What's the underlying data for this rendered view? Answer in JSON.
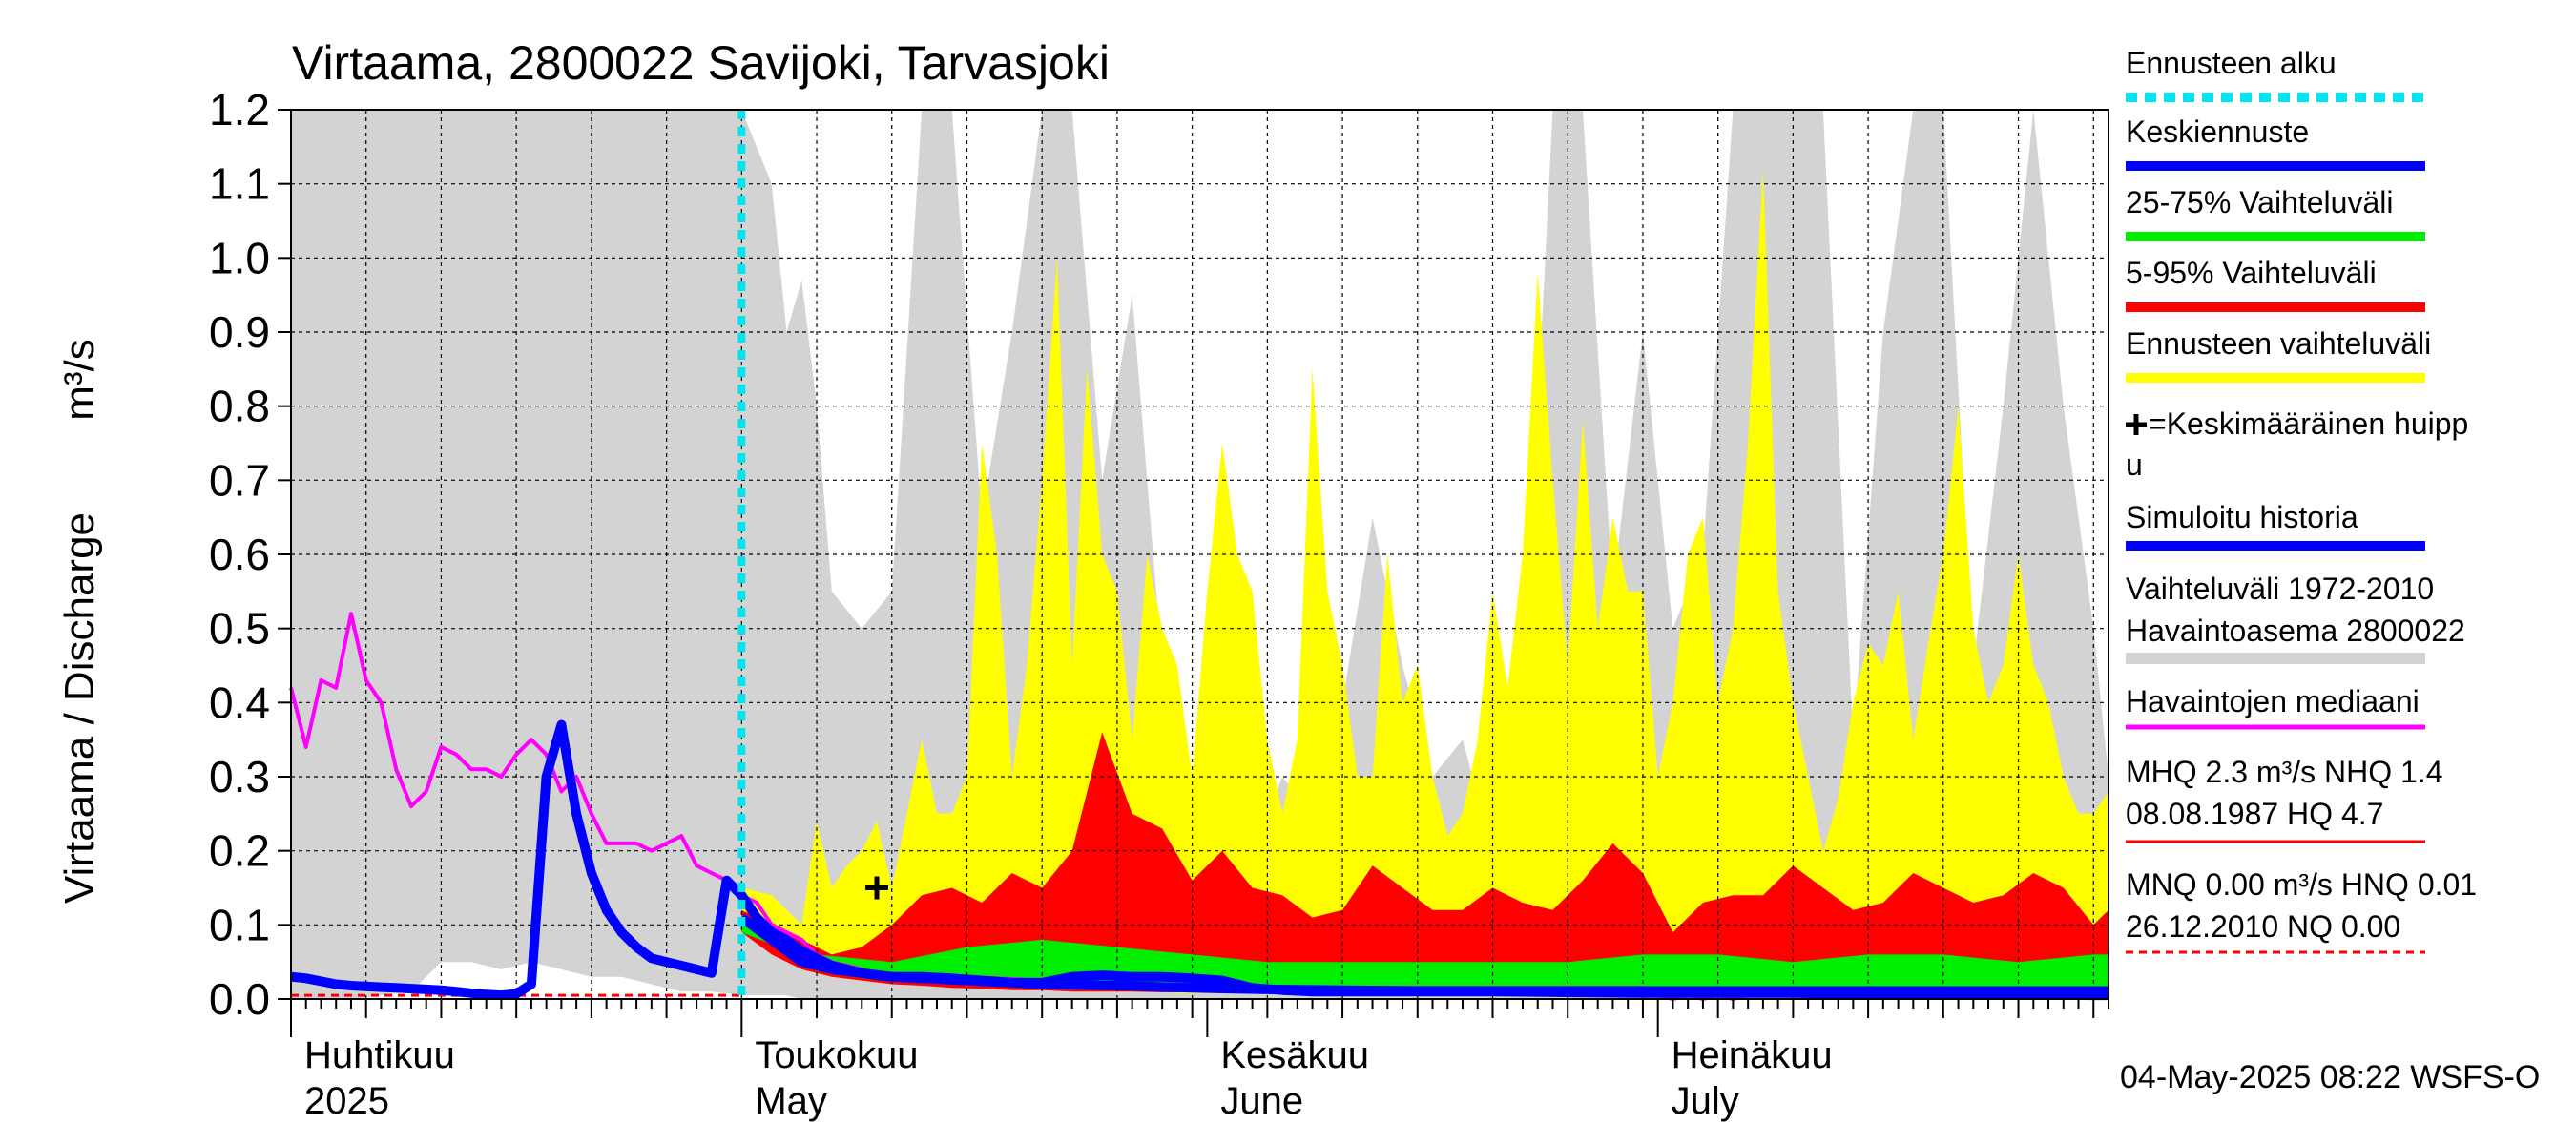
{
  "chart_data": {
    "type": "area",
    "title": "Virtaama, 2800022 Savijoki, Tarvasjoki",
    "ylabel": "Virtaama / Discharge",
    "yunit": "m³/s",
    "ylim": [
      0,
      1.2
    ],
    "yticks": [
      "0.0",
      "0.1",
      "0.2",
      "0.3",
      "0.4",
      "0.5",
      "0.6",
      "0.7",
      "0.8",
      "0.9",
      "1.0",
      "1.1",
      "1.2"
    ],
    "xlim_days": [
      0,
      121
    ],
    "forecast_start_day": 30,
    "month_labels": [
      {
        "day": 0,
        "fi": "Huhtikuu",
        "en": "2025"
      },
      {
        "day": 30,
        "fi": "Toukokuu",
        "en": "May"
      },
      {
        "day": 61,
        "fi": "Kesäkuu",
        "en": "June"
      },
      {
        "day": 91,
        "fi": "Heinäkuu",
        "en": "July"
      }
    ],
    "avg_peak": {
      "day": 39,
      "value": 0.15
    },
    "series": [
      {
        "name": "Vaihteluväli 1972-2010 Havaintoasema 2800022",
        "kind": "band",
        "color": "#d3d3d3",
        "x": [
          0,
          2,
          4,
          6,
          8,
          10,
          12,
          14,
          16,
          18,
          20,
          22,
          24,
          26,
          28,
          30,
          32,
          33,
          34,
          35,
          36,
          38,
          40,
          42,
          44,
          46,
          48,
          50,
          52,
          54,
          56,
          58,
          60,
          62,
          64,
          66,
          68,
          70,
          72,
          74,
          76,
          78,
          80,
          82,
          84,
          86,
          88,
          90,
          92,
          94,
          96,
          98,
          100,
          102,
          104,
          106,
          108,
          110,
          112,
          114,
          116,
          118,
          120,
          121
        ],
        "low": [
          0,
          0,
          0,
          0.005,
          0.01,
          0.05,
          0.05,
          0.04,
          0.05,
          0.04,
          0.03,
          0.03,
          0.02,
          0.01,
          0.01,
          0.005,
          0.005,
          0.005,
          0,
          0,
          0,
          0,
          0,
          0,
          0,
          0,
          0,
          0,
          0,
          0,
          0,
          0,
          0,
          0,
          0,
          0,
          0,
          0,
          0,
          0,
          0,
          0,
          0,
          0,
          0,
          0,
          0,
          0,
          0,
          0,
          0,
          0,
          0,
          0,
          0,
          0,
          0,
          0,
          0,
          0,
          0,
          0,
          0,
          0
        ],
        "high": [
          1.2,
          1.2,
          1.2,
          1.2,
          1.2,
          1.2,
          1.2,
          1.2,
          1.2,
          1.2,
          1.2,
          1.2,
          1.2,
          1.2,
          1.2,
          1.2,
          1.1,
          0.9,
          0.97,
          0.8,
          0.55,
          0.5,
          0.55,
          1.2,
          1.2,
          0.65,
          0.9,
          1.2,
          1.2,
          0.7,
          0.95,
          0.45,
          0.3,
          0.35,
          0.2,
          0.3,
          0.25,
          0.4,
          0.65,
          0.45,
          0.3,
          0.35,
          0.2,
          0.4,
          1.2,
          1.2,
          0.55,
          0.9,
          0.5,
          0.6,
          1.2,
          1.2,
          1.2,
          1.2,
          0.35,
          0.9,
          1.2,
          1.2,
          0.45,
          0.8,
          1.2,
          0.8,
          0.5,
          0.3
        ]
      },
      {
        "name": "Ennusteen vaihteluväli",
        "kind": "band",
        "color": "#ffff00",
        "x": [
          30,
          32,
          33,
          34,
          35,
          36,
          37,
          38,
          39,
          40,
          41,
          42,
          43,
          44,
          45,
          46,
          47,
          48,
          49,
          50,
          51,
          52,
          53,
          54,
          55,
          56,
          57,
          58,
          59,
          60,
          61,
          62,
          63,
          64,
          65,
          66,
          67,
          68,
          69,
          70,
          71,
          72,
          73,
          74,
          75,
          76,
          77,
          78,
          79,
          80,
          81,
          82,
          83,
          84,
          85,
          86,
          87,
          88,
          89,
          90,
          91,
          92,
          93,
          94,
          95,
          96,
          97,
          98,
          99,
          100,
          101,
          102,
          103,
          104,
          105,
          106,
          107,
          108,
          109,
          110,
          111,
          112,
          113,
          114,
          115,
          116,
          117,
          118,
          119,
          120,
          121
        ],
        "low": [
          0.1,
          0.08,
          0.07,
          0.06,
          0.05,
          0.04,
          0.04,
          0.03,
          0.03,
          0.03,
          0.025,
          0.025,
          0.02,
          0.02,
          0.02,
          0.02,
          0.015,
          0.015,
          0.015,
          0.012,
          0.012,
          0.01,
          0.01,
          0.01,
          0.01,
          0.01,
          0.01,
          0.01,
          0.008,
          0.008,
          0.008,
          0.008,
          0.008,
          0.008,
          0.008,
          0.008,
          0.008,
          0.008,
          0.008,
          0.008,
          0.008,
          0.008,
          0.008,
          0.008,
          0.008,
          0.008,
          0.008,
          0.008,
          0.008,
          0.008,
          0.008,
          0.008,
          0.008,
          0.008,
          0.008,
          0.008,
          0.008,
          0.008,
          0.008,
          0.008,
          0.008,
          0.008,
          0.008,
          0.008,
          0.008,
          0.008,
          0.008,
          0.008,
          0.008,
          0.008,
          0.008,
          0.008,
          0.008,
          0.008,
          0.008,
          0.008,
          0.008,
          0.008,
          0.008,
          0.008,
          0.008,
          0.008,
          0.008,
          0.008,
          0.008,
          0.008,
          0.008,
          0.008,
          0.008,
          0.008,
          0.008
        ],
        "high": [
          0.15,
          0.14,
          0.12,
          0.1,
          0.24,
          0.15,
          0.18,
          0.2,
          0.24,
          0.15,
          0.25,
          0.35,
          0.25,
          0.25,
          0.3,
          0.75,
          0.6,
          0.3,
          0.45,
          0.7,
          1.0,
          0.45,
          0.85,
          0.6,
          0.55,
          0.35,
          0.6,
          0.5,
          0.45,
          0.3,
          0.55,
          0.75,
          0.6,
          0.55,
          0.35,
          0.25,
          0.35,
          0.85,
          0.55,
          0.45,
          0.3,
          0.3,
          0.6,
          0.4,
          0.45,
          0.3,
          0.22,
          0.25,
          0.35,
          0.55,
          0.42,
          0.6,
          0.98,
          0.7,
          0.45,
          0.78,
          0.5,
          0.65,
          0.55,
          0.55,
          0.3,
          0.4,
          0.6,
          0.65,
          0.4,
          0.5,
          0.75,
          1.12,
          0.55,
          0.4,
          0.3,
          0.2,
          0.27,
          0.4,
          0.48,
          0.45,
          0.55,
          0.35,
          0.48,
          0.6,
          0.8,
          0.5,
          0.4,
          0.45,
          0.6,
          0.45,
          0.4,
          0.3,
          0.25,
          0.25,
          0.28
        ]
      },
      {
        "name": "5-95% Vaihteluväli",
        "kind": "band",
        "color": "#ff0000",
        "x": [
          30,
          32,
          34,
          36,
          38,
          40,
          42,
          44,
          46,
          48,
          50,
          52,
          54,
          56,
          58,
          60,
          62,
          64,
          66,
          68,
          70,
          72,
          74,
          76,
          78,
          80,
          82,
          84,
          86,
          88,
          90,
          92,
          94,
          96,
          98,
          100,
          102,
          104,
          106,
          108,
          110,
          112,
          114,
          116,
          118,
          120,
          121
        ],
        "low": [
          0.09,
          0.06,
          0.04,
          0.03,
          0.025,
          0.02,
          0.018,
          0.015,
          0.014,
          0.012,
          0.012,
          0.01,
          0.01,
          0.01,
          0.009,
          0.009,
          0.009,
          0.009,
          0.009,
          0.009,
          0.009,
          0.009,
          0.009,
          0.009,
          0.009,
          0.009,
          0.009,
          0.009,
          0.009,
          0.009,
          0.009,
          0.009,
          0.009,
          0.009,
          0.009,
          0.009,
          0.009,
          0.009,
          0.009,
          0.009,
          0.009,
          0.009,
          0.009,
          0.009,
          0.009,
          0.009,
          0.009
        ],
        "high": [
          0.12,
          0.1,
          0.08,
          0.06,
          0.07,
          0.1,
          0.14,
          0.15,
          0.13,
          0.17,
          0.15,
          0.2,
          0.36,
          0.25,
          0.23,
          0.16,
          0.2,
          0.15,
          0.14,
          0.11,
          0.12,
          0.18,
          0.15,
          0.12,
          0.12,
          0.15,
          0.13,
          0.12,
          0.16,
          0.21,
          0.17,
          0.09,
          0.13,
          0.14,
          0.14,
          0.18,
          0.15,
          0.12,
          0.13,
          0.17,
          0.15,
          0.13,
          0.14,
          0.17,
          0.15,
          0.1,
          0.12
        ]
      },
      {
        "name": "25-75% Vaihteluväli",
        "kind": "band",
        "color": "#00ee00",
        "x": [
          30,
          35,
          40,
          45,
          50,
          55,
          60,
          65,
          70,
          75,
          80,
          85,
          90,
          95,
          100,
          105,
          110,
          115,
          120,
          121
        ],
        "low": [
          0.09,
          0.05,
          0.03,
          0.02,
          0.018,
          0.015,
          0.013,
          0.012,
          0.012,
          0.011,
          0.011,
          0.011,
          0.011,
          0.011,
          0.011,
          0.011,
          0.011,
          0.011,
          0.011,
          0.011
        ],
        "high": [
          0.1,
          0.06,
          0.05,
          0.07,
          0.08,
          0.07,
          0.06,
          0.05,
          0.05,
          0.05,
          0.05,
          0.05,
          0.06,
          0.06,
          0.05,
          0.06,
          0.06,
          0.05,
          0.06,
          0.06
        ]
      },
      {
        "name": "Havaintojen mediaani",
        "kind": "line",
        "color": "#ff00ff",
        "x": [
          0,
          1,
          2,
          3,
          4,
          5,
          6,
          7,
          8,
          9,
          10,
          11,
          12,
          13,
          14,
          15,
          16,
          17,
          18,
          19,
          20,
          21,
          22,
          23,
          24,
          25,
          26,
          27,
          28,
          29,
          30,
          31,
          32,
          33,
          34,
          35,
          36,
          37,
          38,
          39,
          40,
          45,
          50,
          55,
          60,
          65,
          70,
          75,
          80,
          85,
          90,
          91,
          92,
          93,
          94,
          95,
          96,
          97,
          98,
          100,
          105,
          110,
          115,
          120,
          121
        ],
        "values": [
          0.42,
          0.34,
          0.43,
          0.42,
          0.52,
          0.43,
          0.4,
          0.31,
          0.26,
          0.28,
          0.34,
          0.33,
          0.31,
          0.31,
          0.3,
          0.33,
          0.35,
          0.33,
          0.28,
          0.3,
          0.25,
          0.21,
          0.21,
          0.21,
          0.2,
          0.21,
          0.22,
          0.18,
          0.17,
          0.16,
          0.14,
          0.13,
          0.1,
          0.09,
          0.08,
          0.06,
          0.05,
          0.045,
          0.04,
          0.035,
          0.03,
          0.03,
          0.025,
          0.02,
          0.015,
          0.015,
          0.015,
          0.015,
          0.015,
          0.015,
          0.015,
          0.005,
          0.0,
          0.005,
          0.0,
          0.005,
          0.0,
          0.005,
          0.005,
          0.005,
          0.005,
          0.005,
          0.005,
          0.005,
          0.005
        ]
      },
      {
        "name": "Simuloitu historia",
        "kind": "line",
        "color": "#0000ff",
        "x": [
          0,
          1,
          2,
          3,
          4,
          5,
          6,
          7,
          8,
          9,
          10,
          11,
          12,
          13,
          14,
          15,
          16,
          17,
          18,
          19,
          20,
          21,
          22,
          23,
          24,
          25,
          26,
          27,
          28,
          29,
          30,
          31,
          32,
          33,
          34,
          35,
          36,
          37,
          38,
          39,
          40,
          42,
          44,
          46,
          48,
          50,
          52,
          54,
          56,
          58,
          60,
          62,
          64,
          66,
          68,
          70,
          75,
          80,
          85,
          90,
          95,
          100,
          105,
          110,
          115,
          120,
          121
        ],
        "values": [
          0.03,
          0.028,
          0.024,
          0.02,
          0.018,
          0.017,
          0.016,
          0.015,
          0.014,
          0.013,
          0.012,
          0.01,
          0.008,
          0.006,
          0.005,
          0.007,
          0.02,
          0.3,
          0.37,
          0.25,
          0.17,
          0.12,
          0.09,
          0.07,
          0.055,
          0.05,
          0.045,
          0.04,
          0.035,
          0.16,
          0.14,
          0.11,
          0.09,
          0.08,
          0.065,
          0.055,
          0.045,
          0.04,
          0.035,
          0.032,
          0.03,
          0.03,
          0.028,
          0.025,
          0.022,
          0.022,
          0.03,
          0.032,
          0.03,
          0.03,
          0.028,
          0.025,
          0.015,
          0.012,
          0.01,
          0.01,
          0.01,
          0.01,
          0.009,
          0.008,
          0.008,
          0.008,
          0.007,
          0.007,
          0.006,
          0.005,
          0.005
        ]
      },
      {
        "name": "Keskiennuste",
        "kind": "line",
        "color": "#0000ff",
        "x": [
          30,
          32,
          34,
          36,
          38,
          40,
          45,
          50,
          55,
          60,
          65,
          70,
          75,
          80,
          85,
          90,
          95,
          100,
          105,
          110,
          115,
          120,
          121
        ],
        "values": [
          0.11,
          0.08,
          0.05,
          0.04,
          0.035,
          0.03,
          0.025,
          0.02,
          0.018,
          0.015,
          0.013,
          0.012,
          0.011,
          0.011,
          0.011,
          0.011,
          0.011,
          0.011,
          0.011,
          0.011,
          0.011,
          0.011,
          0.011
        ]
      }
    ],
    "reference_lines": [
      {
        "name": "MHQ",
        "value": 2.3,
        "color": "#ff0000",
        "style": "solid"
      },
      {
        "name": "MNQ",
        "value": 0.0,
        "color": "#ff0000",
        "style": "dashed"
      }
    ]
  },
  "legend": {
    "items": [
      {
        "label": "Ennusteen alku",
        "color": "#00e5ee",
        "style": "dotted"
      },
      {
        "label": "Keskiennuste",
        "color": "#0000ff",
        "style": "solid"
      },
      {
        "label": "25-75% Vaihteluväli",
        "color": "#00ee00",
        "style": "solid"
      },
      {
        "label": "5-95% Vaihteluväli",
        "color": "#ff0000",
        "style": "solid"
      },
      {
        "label": "Ennusteen vaihteluväli",
        "color": "#ffff00",
        "style": "solid"
      }
    ],
    "peak_label_line1": "=Keskimääräinen huipp",
    "peak_label_line2": "u",
    "sim_label": "Simuloitu historia",
    "sim_color": "#0000ff",
    "range_label_line1": "Vaihteluväli 1972-2010",
    "range_label_line2": " Havaintoasema 2800022",
    "range_color": "#d3d3d3",
    "median_label": "Havaintojen mediaani",
    "median_color": "#ff00ff",
    "mhq_line1": "MHQ  2.3 m³/s NHQ  1.4",
    "mhq_line2": "08.08.1987 HQ  4.7",
    "mnq_line1": "MNQ 0.00 m³/s HNQ 0.01",
    "mnq_line2": "26.12.2010 NQ 0.00"
  },
  "footer": {
    "timestamp": "04-May-2025 08:22 WSFS-O"
  }
}
